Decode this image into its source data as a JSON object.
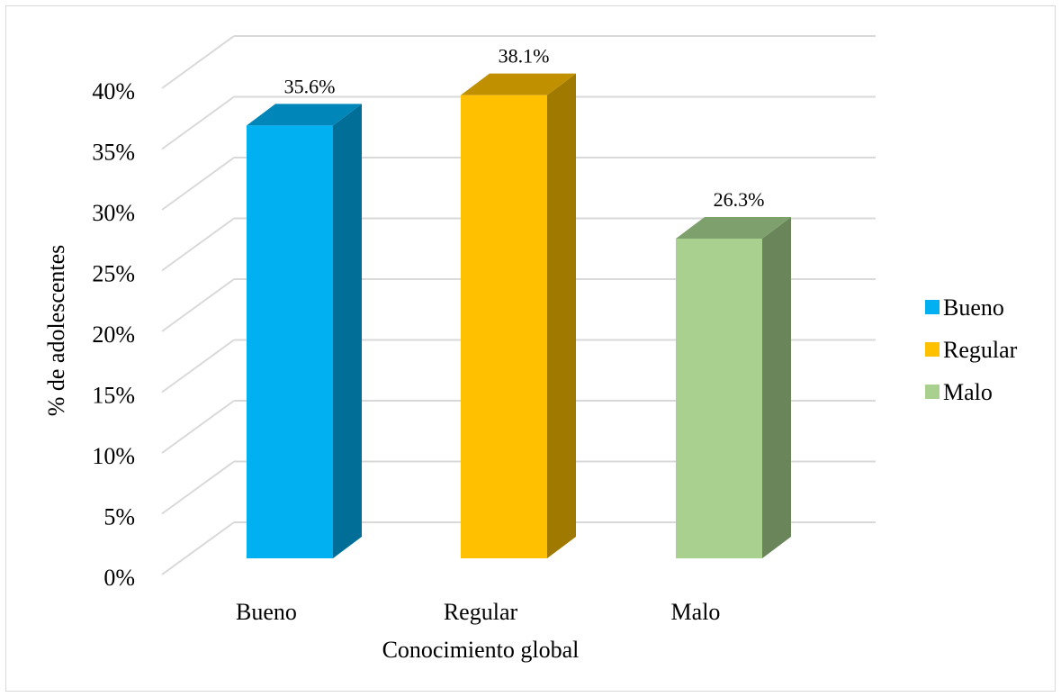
{
  "chart_data": {
    "type": "bar",
    "style": "3d-column",
    "categories": [
      "Bueno",
      "Regular",
      "Malo"
    ],
    "values": [
      35.6,
      38.1,
      26.3
    ],
    "data_labels": [
      "35.6%",
      "38.1%",
      "26.3%"
    ],
    "xlabel": "Conocimiento global",
    "ylabel": "% de  adolescentes",
    "ylim": [
      0,
      40
    ],
    "yticks": [
      0,
      5,
      10,
      15,
      20,
      25,
      30,
      35,
      40
    ],
    "ytick_labels": [
      "0%",
      "5%",
      "10%",
      "15%",
      "20%",
      "25%",
      "30%",
      "35%",
      "40%"
    ],
    "grid": true,
    "legend": {
      "position": "right",
      "entries": [
        "Bueno",
        "Regular",
        "Malo"
      ]
    },
    "colors": {
      "Bueno": {
        "front": "#00b0f0",
        "top": "#0086b9",
        "side": "#006e96"
      },
      "Regular": {
        "front": "#ffc000",
        "top": "#c09000",
        "side": "#a07a00"
      },
      "Malo": {
        "front": "#a9d08e",
        "top": "#7ea06c",
        "side": "#6b855a"
      },
      "grid": "#d9d9d9"
    }
  }
}
